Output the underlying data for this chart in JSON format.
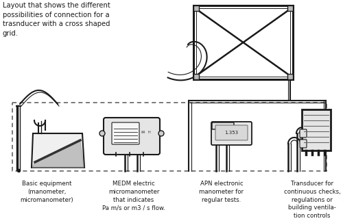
{
  "title_text": "Layout that shows the different\npossibilities of connection for a\ntrasnducer with a cross shaped\ngrid.",
  "labels": [
    "Basic equipment\n(manometer,\nmicromanometer)",
    "MEDM electric\nmicromanometer\nthat indicates\nPa m/s or m3 / s flow.",
    "APN electronic\nmanometer for\nregular tests.",
    "Transducer for\ncontinuous checks,\nregulations or\nbuilding ventila-\ntion controls"
  ],
  "bg_color": "#ffffff",
  "text_color": "#1a1a1a",
  "line_color": "#1a1a1a",
  "dashed_color": "#555555",
  "fig_width": 5.0,
  "fig_height": 3.26,
  "dpi": 100
}
